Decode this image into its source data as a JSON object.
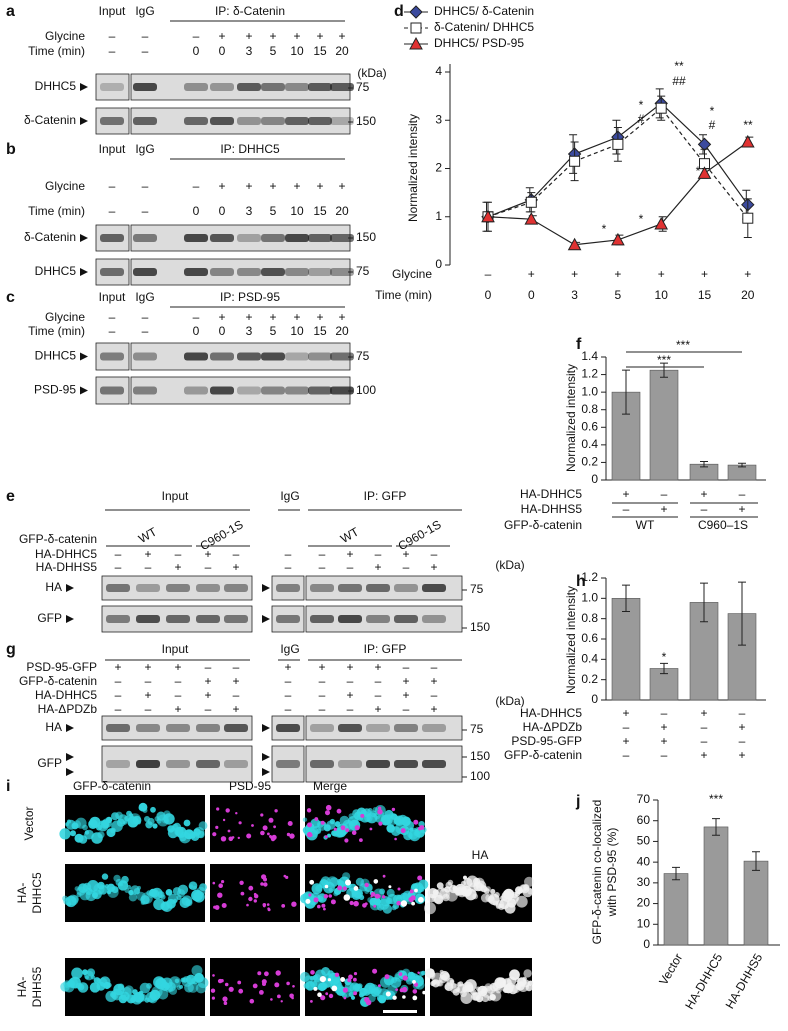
{
  "panel_letters": [
    "a",
    "b",
    "c",
    "d",
    "e",
    "f",
    "g",
    "h",
    "i",
    "j"
  ],
  "blots": [
    {
      "header": [
        "Input",
        "IgG",
        "IP: δ-Catenin"
      ],
      "rows": [
        {
          "name": "Glycine",
          "values": [
            "–",
            "–",
            "–",
            "+",
            "+",
            "+",
            "+",
            "+",
            "+"
          ]
        },
        {
          "name": "Time (min)",
          "values": [
            "–",
            "–",
            "0",
            "0",
            "3",
            "5",
            "10",
            "15",
            "20"
          ]
        }
      ],
      "bands": [
        "DHHC5",
        "δ-Catenin"
      ],
      "unit": "(kDa)",
      "markers": [
        75,
        150
      ]
    },
    {
      "header": [
        "Input",
        "IgG",
        "IP: DHHC5"
      ],
      "rows": [
        {
          "name": "Glycine",
          "values": [
            "–",
            "–",
            "–",
            "+",
            "+",
            "+",
            "+",
            "+",
            "+"
          ]
        },
        {
          "name": "Time (min)",
          "values": [
            "–",
            "–",
            "0",
            "0",
            "3",
            "5",
            "10",
            "15",
            "20"
          ]
        }
      ],
      "bands": [
        "δ-Catenin",
        "DHHC5"
      ],
      "markers": [
        150,
        75
      ]
    },
    {
      "header": [
        "Input",
        "IgG",
        "IP: PSD-95"
      ],
      "rows": [
        {
          "name": "Glycine",
          "values": [
            "–",
            "–",
            "–",
            "+",
            "+",
            "+",
            "+",
            "+",
            "+"
          ]
        },
        {
          "name": "Time (min)",
          "values": [
            "–",
            "–",
            "0",
            "0",
            "3",
            "5",
            "10",
            "15",
            "20"
          ]
        }
      ],
      "bands": [
        "DHHC5",
        "PSD-95"
      ],
      "markers": [
        75,
        100
      ]
    },
    {
      "header": [
        "Input",
        "IgG",
        "IP: GFP"
      ],
      "group_label": "GFP-δ-catenin",
      "groups": [
        "WT",
        "C960-1S",
        "WT",
        "C960-1S"
      ],
      "rows": [
        {
          "name": "HA-DHHC5",
          "values": [
            "–",
            "+",
            "–",
            "+",
            "–",
            "–",
            "–",
            "+",
            "–",
            "+",
            "–"
          ]
        },
        {
          "name": "HA-DHHS5",
          "values": [
            "–",
            "–",
            "+",
            "–",
            "+",
            "–",
            "–",
            "–",
            "+",
            "–",
            "+"
          ]
        }
      ],
      "bands": [
        "HA",
        "GFP"
      ],
      "unit": "(kDa)",
      "markers": [
        75,
        150
      ]
    },
    {
      "header": [
        "Input",
        "IgG",
        "IP: GFP"
      ],
      "rows": [
        {
          "name": "PSD-95-GFP",
          "values": [
            "+",
            "+",
            "+",
            "–",
            "–",
            "+",
            "+",
            "+",
            "+",
            "–",
            "–"
          ]
        },
        {
          "name": "GFP-δ-catenin",
          "values": [
            "–",
            "–",
            "–",
            "+",
            "+",
            "–",
            "–",
            "–",
            "–",
            "+",
            "+"
          ]
        },
        {
          "name": "HA-DHHC5",
          "values": [
            "–",
            "+",
            "–",
            "+",
            "–",
            "–",
            "–",
            "+",
            "–",
            "+",
            "–"
          ]
        },
        {
          "name": "HA-ΔPDZb",
          "values": [
            "–",
            "–",
            "+",
            "–",
            "+",
            "–",
            "–",
            "–",
            "+",
            "–",
            "+"
          ]
        }
      ],
      "bands": [
        "HA",
        "GFP"
      ],
      "unit": "(kDa)",
      "markers": [
        75,
        150,
        100
      ]
    }
  ],
  "chart_data": [
    {
      "type": "line",
      "ylabel": "Normalized intensity",
      "glycine_label": "Glycine",
      "glycine": [
        "–",
        "+",
        "+",
        "+",
        "+",
        "+",
        "+"
      ],
      "time_label": "Time (min)",
      "categories": [
        "0",
        "0",
        "3",
        "5",
        "10",
        "15",
        "20"
      ],
      "ylim": [
        0,
        4
      ],
      "yticks": [
        0,
        1,
        2,
        3,
        4
      ],
      "series": [
        {
          "name": "DHHC5/ δ-Catenin",
          "color": "#3b4a9e",
          "marker": "diamond",
          "line": "solid",
          "values": [
            1,
            1.35,
            2.3,
            2.65,
            3.35,
            2.5,
            1.25
          ],
          "errors": [
            0.3,
            0.25,
            0.4,
            0.35,
            0.3,
            0.2,
            0.3
          ]
        },
        {
          "name": "δ-Catenin/ DHHC5",
          "color": "#ffffff",
          "marker": "square",
          "line": "dashed",
          "values": [
            1,
            1.3,
            2.15,
            2.5,
            3.25,
            2.1,
            0.97
          ],
          "errors": [
            0.3,
            0.2,
            0.4,
            0.35,
            0.25,
            0.3,
            0.4
          ]
        },
        {
          "name": "DHHC5/ PSD-95",
          "color": "#e03232",
          "marker": "triangle",
          "line": "solid",
          "values": [
            1,
            0.95,
            0.42,
            0.52,
            0.85,
            1.9,
            2.55
          ],
          "errors": [
            0.1,
            0.07,
            0.05,
            0.1,
            0.15,
            0.1,
            0.1
          ]
        }
      ],
      "annotations": [
        "*",
        "#",
        "**",
        "##",
        "*",
        "#",
        "**",
        "*",
        "*",
        "*"
      ]
    },
    {
      "type": "bar",
      "ylabel": "Normalized intensity",
      "color": "#9a9a9a",
      "values": [
        1.0,
        1.25,
        0.18,
        0.17
      ],
      "errors": [
        0.25,
        0.08,
        0.03,
        0.02
      ],
      "ylim": [
        0,
        1.4
      ],
      "yticks": [
        0,
        0.2,
        0.4,
        0.6,
        0.8,
        {
          "value": 1,
          "label": "1.0"
        },
        1.2,
        1.4
      ],
      "rows": [
        {
          "name": "HA-DHHC5",
          "values": [
            "+",
            "–",
            "+",
            "–"
          ]
        },
        {
          "name": "HA-DHHS5",
          "values": [
            "–",
            "+",
            "–",
            "+"
          ]
        }
      ],
      "group_label": "GFP-δ-catenin",
      "groups": [
        "WT",
        "C960–1S"
      ],
      "annotations": [
        "***",
        "***"
      ]
    },
    {
      "type": "bar",
      "ylabel": "Normalized intensity",
      "color": "#9a9a9a",
      "values": [
        1.0,
        0.31,
        0.96,
        0.85
      ],
      "errors": [
        0.13,
        0.05,
        0.19,
        0.31
      ],
      "ylim": [
        0,
        1.2
      ],
      "yticks": [
        0,
        0.2,
        0.4,
        0.6,
        0.8,
        {
          "value": 1,
          "label": "1.0"
        },
        1.2
      ],
      "rows": [
        {
          "name": "HA-DHHC5",
          "values": [
            "+",
            "–",
            "+",
            "–"
          ]
        },
        {
          "name": "HA-ΔPDZb",
          "values": [
            "–",
            "+",
            "–",
            "+"
          ]
        },
        {
          "name": "PSD-95-GFP",
          "values": [
            "+",
            "+",
            "–",
            "–"
          ]
        },
        {
          "name": "GFP-δ-catenin",
          "values": [
            "–",
            "–",
            "+",
            "+"
          ]
        }
      ],
      "annotations": [
        "*"
      ]
    },
    {
      "type": "bar",
      "ylabel": [
        "GFP-δ-catenin co-localized",
        "with PSD-95 (%)"
      ],
      "color": "#9a9a9a",
      "categories": [
        "Vector",
        "HA-DHHC5",
        "HA-DHHS5"
      ],
      "values": [
        34.5,
        57,
        40.5
      ],
      "errors": [
        3,
        4,
        4.5
      ],
      "ylim": [
        0,
        70
      ],
      "yticks": [
        0,
        10,
        20,
        30,
        40,
        50,
        60,
        70
      ],
      "annotations": [
        "***"
      ]
    }
  ],
  "microscopy": {
    "headers": [
      "GFP-δ-catenin",
      "PSD-95",
      "Merge",
      "HA"
    ],
    "rows": [
      [
        "Vector"
      ],
      [
        "HA-",
        "DHHC5"
      ],
      [
        "HA-",
        "DHHS5"
      ]
    ]
  }
}
